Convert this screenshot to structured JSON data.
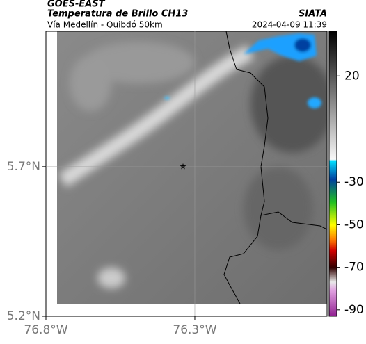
{
  "header": {
    "title": "GOES-EAST",
    "product": "Temperatura de Brillo CH13",
    "credit": "SIATA",
    "region": "Vía Medellín - Quibdó 50km",
    "timestamp": "2024-04-09 11:39"
  },
  "map": {
    "lon_range": [
      -76.8,
      -75.856
    ],
    "lat_range": [
      5.2,
      6.153
    ],
    "lat_ticks": [
      {
        "value": 5.7,
        "label": "5.7°N"
      },
      {
        "value": 5.2,
        "label": "5.2°N"
      }
    ],
    "lon_ticks": [
      {
        "value": -76.8,
        "label": "76.8°W"
      },
      {
        "value": -76.3,
        "label": "76.3°W"
      }
    ]
  },
  "colorbar": {
    "range": [
      -93,
      41
    ],
    "ticks": [
      20,
      -30,
      -50,
      -70,
      -90
    ]
  }
}
